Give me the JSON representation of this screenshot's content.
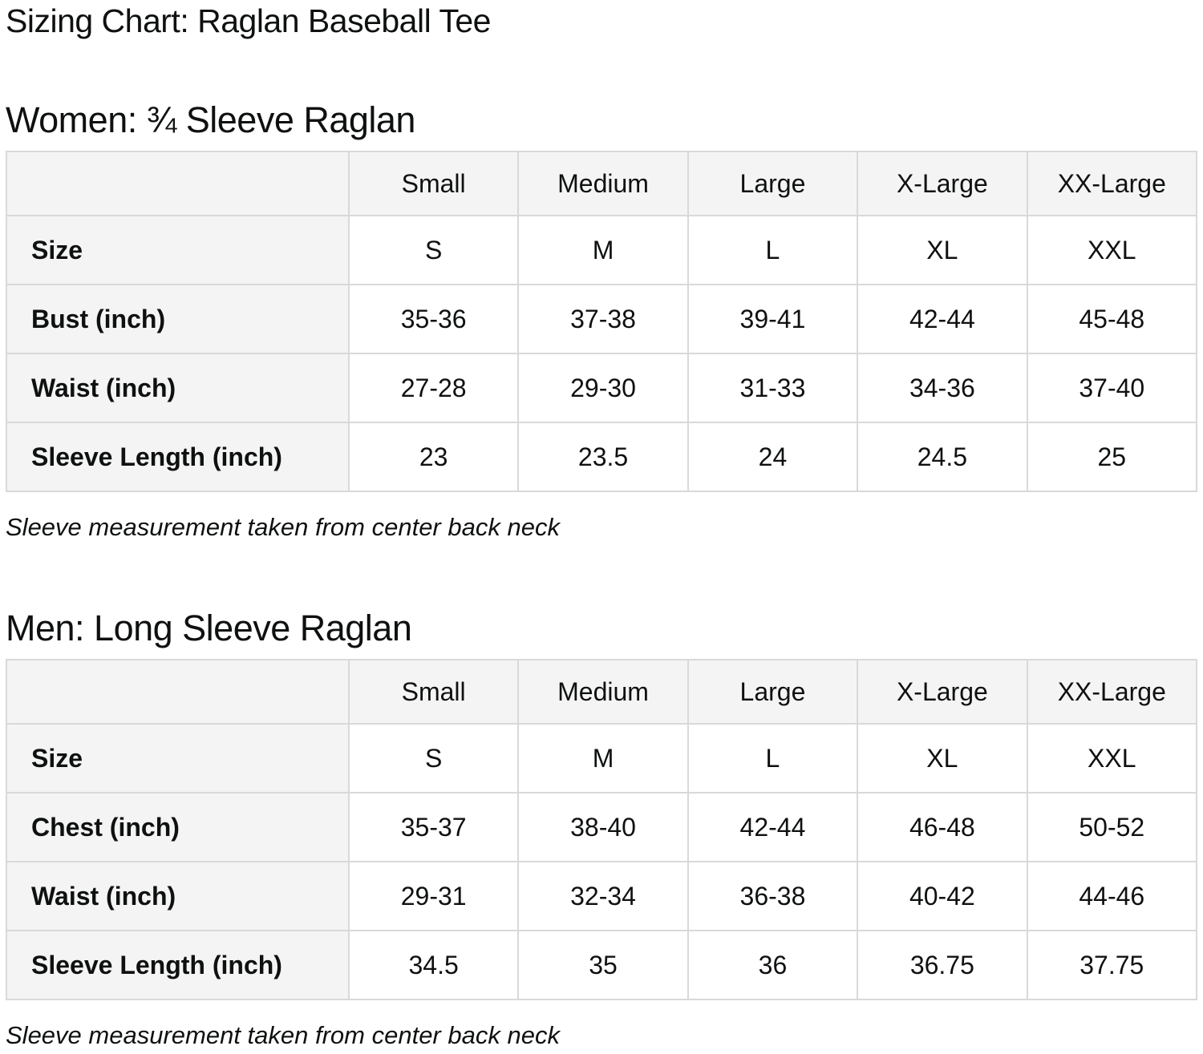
{
  "page_title": "Sizing Chart: Raglan Baseball Tee",
  "colors": {
    "text": "#0f1111",
    "header_bg": "#f4f4f4",
    "border": "#d9d9d9"
  },
  "sections": [
    {
      "heading": "Women: ¾ Sleeve Raglan",
      "note": "Sleeve measurement taken from center back neck",
      "table": {
        "columns": [
          "",
          "Small",
          "Medium",
          "Large",
          "X-Large",
          "XX-Large"
        ],
        "rows": [
          {
            "label": "Size",
            "values": [
              "S",
              "M",
              "L",
              "XL",
              "XXL"
            ]
          },
          {
            "label": "Bust (inch)",
            "values": [
              "35-36",
              "37-38",
              "39-41",
              "42-44",
              "45-48"
            ]
          },
          {
            "label": "Waist (inch)",
            "values": [
              "27-28",
              "29-30",
              "31-33",
              "34-36",
              "37-40"
            ]
          },
          {
            "label": "Sleeve Length (inch)",
            "values": [
              "23",
              "23.5",
              "24",
              "24.5",
              "25"
            ]
          }
        ]
      }
    },
    {
      "heading": "Men: Long Sleeve Raglan",
      "note": "Sleeve measurement taken from center back neck",
      "table": {
        "columns": [
          "",
          "Small",
          "Medium",
          "Large",
          "X-Large",
          "XX-Large"
        ],
        "rows": [
          {
            "label": "Size",
            "values": [
              "S",
              "M",
              "L",
              "XL",
              "XXL"
            ]
          },
          {
            "label": "Chest (inch)",
            "values": [
              "35-37",
              "38-40",
              "42-44",
              "46-48",
              "50-52"
            ]
          },
          {
            "label": "Waist (inch)",
            "values": [
              "29-31",
              "32-34",
              "36-38",
              "40-42",
              "44-46"
            ]
          },
          {
            "label": "Sleeve Length (inch)",
            "values": [
              "34.5",
              "35",
              "36",
              "36.75",
              "37.75"
            ]
          }
        ]
      }
    }
  ]
}
